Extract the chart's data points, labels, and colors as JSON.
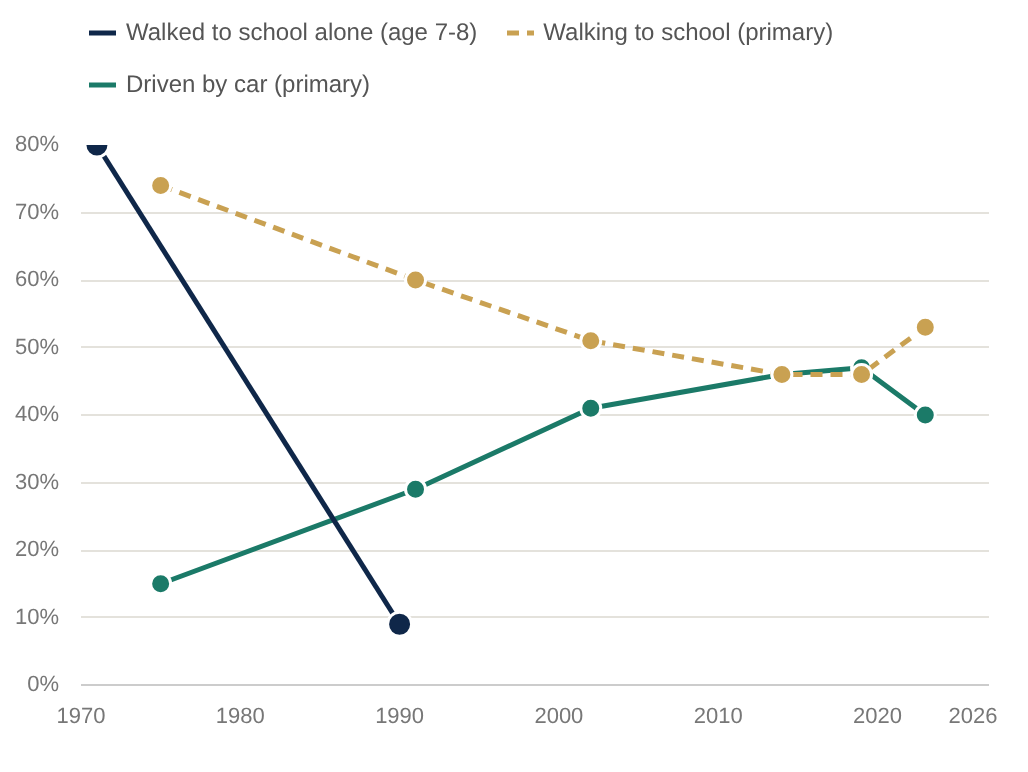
{
  "chart_data": {
    "type": "line",
    "xlim": [
      1970,
      2027
    ],
    "xticks": [
      1970,
      1980,
      1990,
      2000,
      2010,
      2020,
      2026
    ],
    "ylim": [
      0,
      80
    ],
    "yticks": [
      {
        "value": 0,
        "label": "0%"
      },
      {
        "value": 10,
        "label": "10%"
      },
      {
        "value": 20,
        "label": "20%"
      },
      {
        "value": 30,
        "label": "30%"
      },
      {
        "value": 40,
        "label": "40%"
      },
      {
        "value": 50,
        "label": "50%"
      },
      {
        "value": 60,
        "label": "60%"
      },
      {
        "value": 70,
        "label": "70%"
      },
      {
        "value": 80,
        "label": "80%"
      }
    ],
    "grid": "y",
    "legend": "top",
    "marker": "circle",
    "series": [
      {
        "name": "Walked to school alone (age 7-8)",
        "color": "#0f2749",
        "line_style": "solid",
        "x": [
          1971,
          1990
        ],
        "values": [
          80,
          9
        ]
      },
      {
        "name": "Walking to school (primary)",
        "color": "#c9a152",
        "line_style": "dashed",
        "x": [
          1975,
          1991,
          2002,
          2014,
          2019,
          2023
        ],
        "values": [
          74,
          60,
          51,
          46,
          46,
          53
        ]
      },
      {
        "name": "Driven by car (primary)",
        "color": "#1b7a68",
        "line_style": "solid",
        "x": [
          1975,
          1991,
          2002,
          2014,
          2019,
          2023
        ],
        "values": [
          15,
          29,
          41,
          46,
          47,
          40
        ]
      }
    ]
  }
}
